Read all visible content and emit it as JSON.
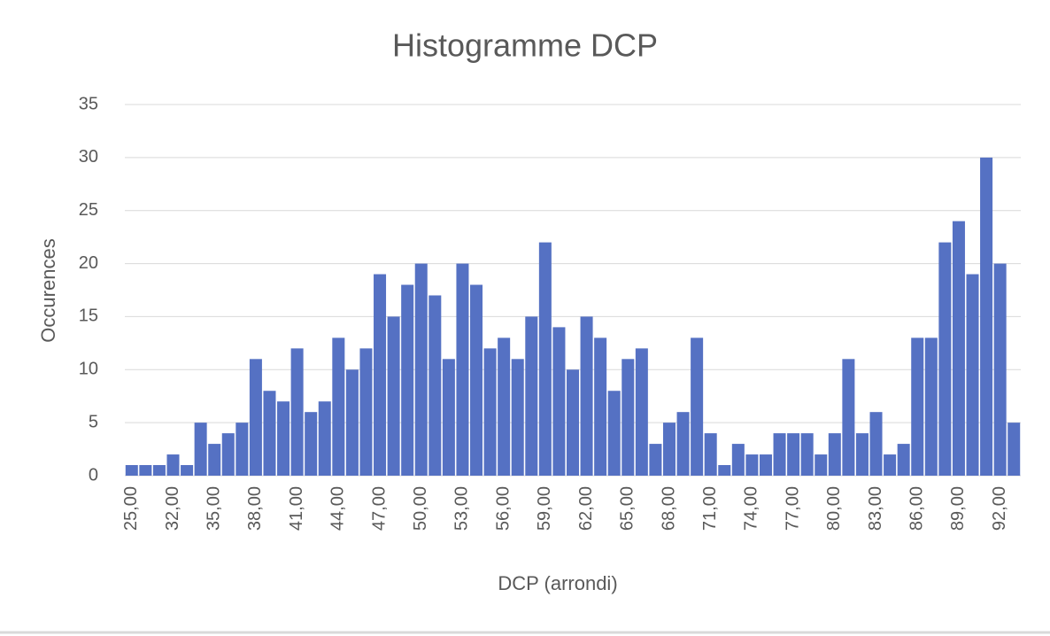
{
  "chart_data": {
    "type": "bar",
    "title": "Histogramme DCP",
    "x_label": "DCP (arrondi)",
    "y_label": "Occurences",
    "categories": [
      "25,00",
      null,
      null,
      "32,00",
      null,
      null,
      "35,00",
      null,
      null,
      "38,00",
      null,
      null,
      "41,00",
      null,
      null,
      "44,00",
      null,
      null,
      "47,00",
      null,
      null,
      "50,00",
      null,
      null,
      "53,00",
      null,
      null,
      "56,00",
      null,
      null,
      "59,00",
      null,
      null,
      "62,00",
      null,
      null,
      "65,00",
      null,
      null,
      "68,00",
      null,
      null,
      "71,00",
      null,
      null,
      "74,00",
      null,
      null,
      "77,00",
      null,
      null,
      "80,00",
      null,
      null,
      "83,00",
      null,
      null,
      "86,00",
      null,
      null,
      "89,00",
      null,
      null,
      "92,00",
      null
    ],
    "values": [
      1,
      1,
      1,
      2,
      1,
      5,
      3,
      4,
      5,
      11,
      8,
      7,
      12,
      6,
      7,
      13,
      10,
      12,
      19,
      15,
      18,
      20,
      17,
      11,
      20,
      18,
      12,
      13,
      11,
      15,
      22,
      14,
      10,
      15,
      13,
      8,
      11,
      12,
      3,
      5,
      6,
      13,
      4,
      1,
      3,
      2,
      2,
      4,
      4,
      4,
      2,
      4,
      11,
      4,
      6,
      2,
      3,
      13,
      13,
      22,
      24,
      19,
      30,
      20,
      5
    ],
    "color": "#5571c3",
    "ylim": [
      0,
      35
    ],
    "yticks": [
      0,
      5,
      10,
      15,
      20,
      25,
      30,
      35
    ],
    "grid": true
  }
}
